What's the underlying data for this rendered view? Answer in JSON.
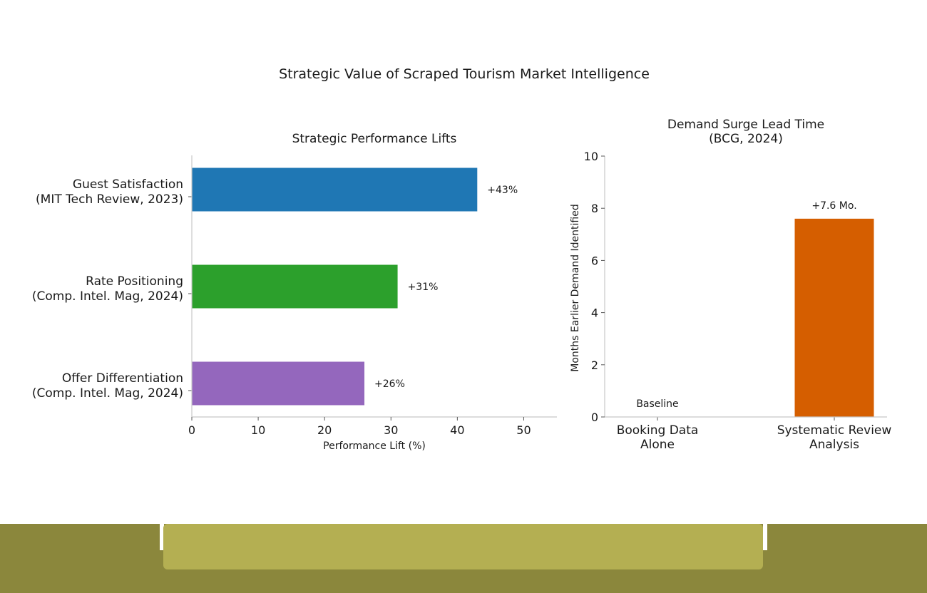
{
  "chart_data": [
    {
      "type": "bar",
      "orientation": "horizontal",
      "suptitle": "Strategic Value of Scraped Tourism Market Intelligence",
      "title": "Strategic Performance Lifts",
      "categories": [
        [
          "Guest Satisfaction",
          "(MIT Tech Review, 2023)"
        ],
        [
          "Rate Positioning",
          "(Comp. Intel. Mag, 2024)"
        ],
        [
          "Offer Differentiation",
          "(Comp. Intel. Mag, 2024)"
        ]
      ],
      "values": [
        43,
        31,
        26
      ],
      "data_labels": [
        "+43%",
        "+31%",
        "+26%"
      ],
      "colors": [
        "#1f77b4",
        "#2ca02c",
        "#9467bd"
      ],
      "xlabel": "Performance Lift (%)",
      "ylabel": "",
      "xlim": [
        0,
        55
      ],
      "xticks": [
        0,
        10,
        20,
        30,
        40,
        50
      ],
      "grid": false,
      "legend": "none"
    },
    {
      "type": "bar",
      "orientation": "vertical",
      "title": [
        "Demand Surge Lead Time",
        "(BCG, 2024)"
      ],
      "categories": [
        [
          "Booking Data",
          "Alone"
        ],
        [
          "Systematic Review",
          "Analysis"
        ]
      ],
      "values": [
        0,
        7.6
      ],
      "data_labels": [
        "Baseline",
        "+7.6 Mo."
      ],
      "colors": [
        "#d55e00",
        "#d55e00"
      ],
      "xlabel": "",
      "ylabel": "Months Earlier Demand Identified",
      "ylim": [
        0,
        10
      ],
      "yticks": [
        0,
        2,
        4,
        6,
        8,
        10
      ],
      "grid": false,
      "legend": "none"
    }
  ]
}
